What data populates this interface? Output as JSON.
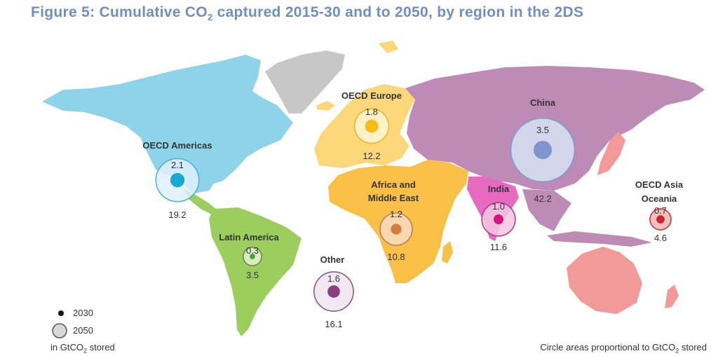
{
  "title": {
    "pre": "Figure 5: Cumulative CO",
    "sub": "2",
    "post": " captured 2015-30 and to 2050, by region in the 2DS"
  },
  "colors": {
    "oecd_americas": "#8fd3ea",
    "latin_america": "#9ccd5d",
    "oecd_europe": "#fbd77a",
    "africa_me": "#f9bf46",
    "china": "#be8bb6",
    "india": "#e56ac0",
    "oecd_asia_oceania": "#f29a9a",
    "greenland": "#c7c7c7",
    "other": "#f7d79b"
  },
  "regions": [
    {
      "name": "OECD Americas",
      "name_line2": "",
      "v2030": "2.1",
      "v2050": "19.2",
      "fill_outer": "#dff0fa",
      "stroke": "#4ab4d9",
      "fill_inner": "#18a8d6"
    },
    {
      "name": "Latin America",
      "name_line2": "",
      "v2030": "0.3",
      "v2050": "3.5",
      "fill_outer": "#e6efd3",
      "stroke": "#6e8a49",
      "fill_inner": "#4e9a3c"
    },
    {
      "name": "OECD Europe",
      "name_line2": "",
      "v2030": "1.8",
      "v2050": "12.2",
      "fill_outer": "#fff6d5",
      "stroke": "#e6b533",
      "fill_inner": "#f5bd16"
    },
    {
      "name": "Africa and",
      "name_line2": "Middle East",
      "v2030": "1.2",
      "v2050": "10.8",
      "fill_outer": "#f9dcc2",
      "stroke": "#b4835d",
      "fill_inner": "#d67c3d"
    },
    {
      "name": "Other",
      "name_line2": "",
      "v2030": "1.6",
      "v2050": "16.1",
      "fill_outer": "#efe4ee",
      "stroke": "#8b5a82",
      "fill_inner": "#8a3e80"
    },
    {
      "name": "China",
      "name_line2": "",
      "v2030": "3.5",
      "v2050": "42.2",
      "fill_outer": "#d7e3f5",
      "stroke": "#7d9ccc",
      "fill_inner": "#7f96cc"
    },
    {
      "name": "India",
      "name_line2": "",
      "v2030": "1.0",
      "v2050": "11.6",
      "fill_outer": "#f2c7e3",
      "stroke": "#b03c86",
      "fill_inner": "#d4157e"
    },
    {
      "name": "OECD Asia",
      "name_line2": "Oceania",
      "v2030": "0.7",
      "v2050": "4.6",
      "fill_outer": "#f2b3b3",
      "stroke": "#c03a3a",
      "fill_inner": "#c4282e"
    }
  ],
  "legend": {
    "item_2030": "2030",
    "item_2050": "2050",
    "unit_pre": "in GtCO",
    "unit_sub": "2",
    "unit_post": " stored"
  },
  "note": {
    "pre": "Circle areas proportional to GtCO",
    "sub": "2",
    "post": " stored"
  }
}
